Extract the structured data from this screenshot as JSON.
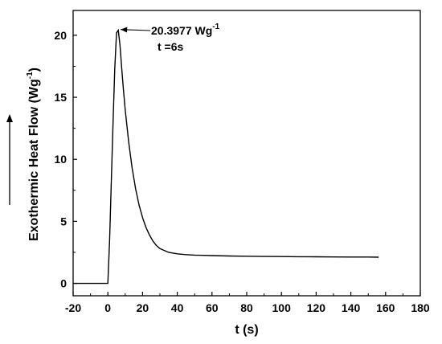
{
  "chart_data": {
    "type": "line",
    "title": "",
    "xlabel": "t (s)",
    "ylabel_main": "Exothermic Heat Flow (Wg",
    "ylabel_sup": "-1",
    "ylabel_tail": ")",
    "xlim": [
      -20,
      180
    ],
    "ylim": [
      -1,
      22
    ],
    "x_ticks": [
      -20,
      0,
      20,
      40,
      60,
      80,
      100,
      120,
      140,
      160,
      180
    ],
    "y_ticks": [
      0,
      5,
      10,
      15,
      20
    ],
    "grid": false,
    "legend": "none",
    "series": [
      {
        "x": [
          -20,
          0,
          1,
          2,
          3,
          4,
          5,
          6,
          7,
          8,
          9,
          10,
          12,
          14,
          16,
          18,
          20,
          22,
          24,
          26,
          28,
          30,
          35,
          40,
          45,
          50,
          55,
          60,
          70,
          80,
          90,
          100,
          110,
          120,
          130,
          140,
          150,
          156
        ],
        "y": [
          0,
          0,
          3.5,
          8.2,
          13.0,
          17.3,
          20.2,
          20.3977,
          19.2,
          17.3,
          15.6,
          14.0,
          11.4,
          9.3,
          7.6,
          6.3,
          5.3,
          4.5,
          3.9,
          3.4,
          3.05,
          2.8,
          2.5,
          2.38,
          2.32,
          2.28,
          2.26,
          2.24,
          2.21,
          2.19,
          2.17,
          2.16,
          2.15,
          2.14,
          2.13,
          2.12,
          2.12,
          2.11
        ],
        "color": "#000000"
      }
    ],
    "annotation": {
      "value_main": "20.3977 Wg",
      "value_sup": "-1",
      "time": "t =6s",
      "x": 6,
      "y": 20.3977
    }
  }
}
